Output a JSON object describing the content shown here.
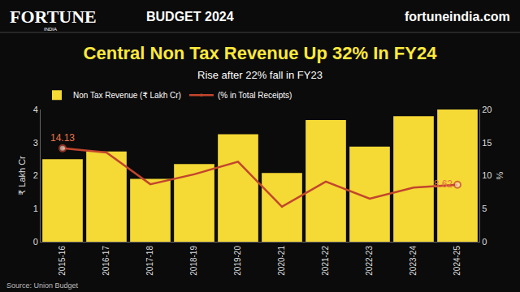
{
  "chart_data": {
    "type": "bar",
    "title": "Central Non Tax Revenue Up 32% In FY24",
    "subtitle": "Rise after 22% fall in FY23",
    "header": {
      "brand": "FORTUNE",
      "brand_sub": "INDIA",
      "section": "BUDGET 2024",
      "site": "fortuneindia.com"
    },
    "source": "Source: Union Budget",
    "categories": [
      "2015-16",
      "2016-17",
      "2017-18",
      "2018-19",
      "2019-20",
      "2020-21",
      "2021-22",
      "2022-23",
      "2023-24",
      "2024-25"
    ],
    "series": [
      {
        "name": "Non Tax Revenue (₹ Lakh Cr)",
        "type": "bar",
        "color": "#f5d935",
        "values": [
          2.5,
          2.73,
          1.9,
          2.35,
          3.25,
          2.08,
          3.68,
          2.88,
          3.8,
          4.0
        ]
      },
      {
        "name": "(% in Total Receipts)",
        "type": "line",
        "axis": "y2",
        "color": "#c2452d",
        "marker": "circle",
        "values": [
          14.13,
          13.5,
          8.7,
          10.2,
          12.1,
          5.3,
          9.1,
          6.5,
          8.2,
          8.62
        ],
        "value_labels": [
          "14.13",
          null,
          null,
          null,
          null,
          null,
          null,
          null,
          null,
          "8.62"
        ]
      }
    ],
    "ylabel": "₹ Lakh Cr",
    "y2label": "%",
    "ylim": [
      0,
      4
    ],
    "yticks": [
      0,
      1,
      2,
      3,
      4
    ],
    "y2lim": [
      0,
      20
    ],
    "y2ticks": [
      0,
      5,
      10,
      15,
      20
    ],
    "grid": false,
    "legend": "top left",
    "data_labels": true
  }
}
